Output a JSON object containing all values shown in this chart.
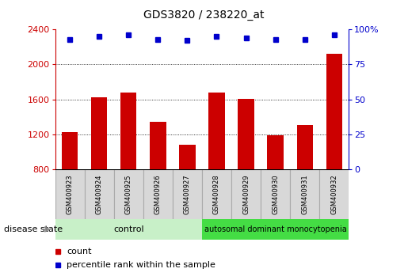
{
  "title": "GDS3820 / 238220_at",
  "samples": [
    "GSM400923",
    "GSM400924",
    "GSM400925",
    "GSM400926",
    "GSM400927",
    "GSM400928",
    "GSM400929",
    "GSM400930",
    "GSM400931",
    "GSM400932"
  ],
  "counts": [
    1230,
    1620,
    1680,
    1340,
    1080,
    1680,
    1610,
    1190,
    1310,
    2120
  ],
  "percentiles": [
    93,
    95,
    96,
    93,
    92,
    95,
    94,
    93,
    93,
    96
  ],
  "ylim_left": [
    800,
    2400
  ],
  "ylim_right": [
    0,
    100
  ],
  "yticks_left": [
    800,
    1200,
    1600,
    2000,
    2400
  ],
  "yticks_right": [
    0,
    25,
    50,
    75,
    100
  ],
  "bar_color": "#cc0000",
  "dot_color": "#0000cc",
  "control_label": "control",
  "disease_label": "autosomal dominant monocytopenia",
  "disease_state_label": "disease state",
  "legend_count": "count",
  "legend_percentile": "percentile rank within the sample",
  "control_color": "#c8f0c8",
  "disease_color": "#44dd44",
  "grid_color": "black",
  "tick_label_color_left": "#cc0000",
  "tick_label_color_right": "#0000cc",
  "bar_width": 0.55,
  "right_axis_label": "100%"
}
